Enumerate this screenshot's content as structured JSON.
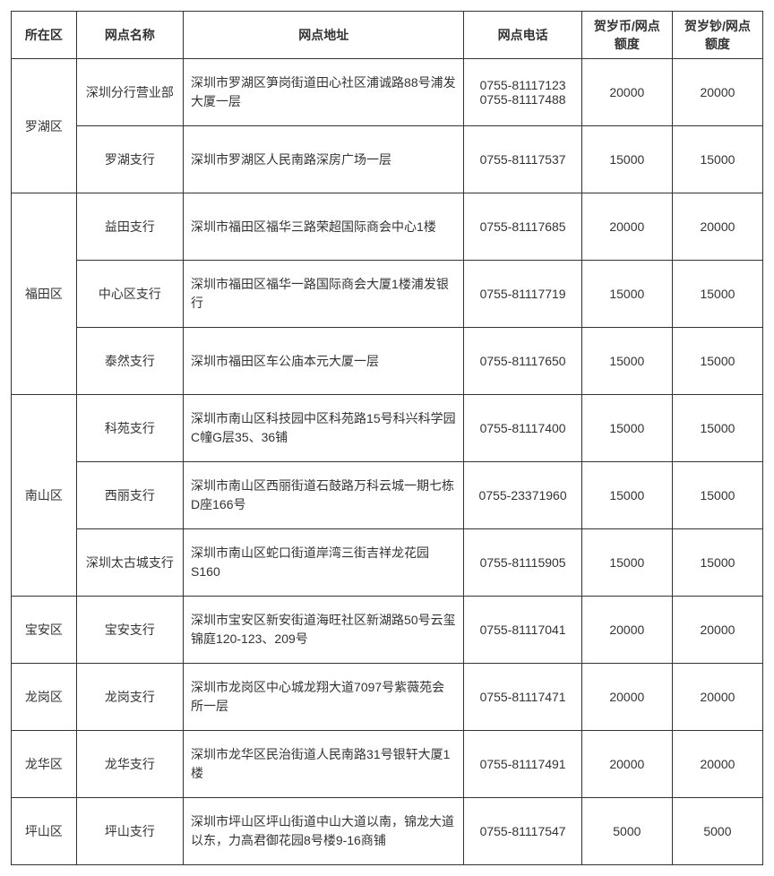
{
  "headers": {
    "district": "所在区",
    "branch": "网点名称",
    "address": "网点地址",
    "phone": "网点电话",
    "coin": "贺岁币/网点额度",
    "note": "贺岁钞/网点额度"
  },
  "groups": [
    {
      "district": "罗湖区",
      "rows": [
        {
          "branch": "深圳分行营业部",
          "address": "深圳市罗湖区笋岗街道田心社区浦诚路88号浦发大厦一层",
          "phone": "0755-81117123\n0755-81117488",
          "coin": "20000",
          "note": "20000"
        },
        {
          "branch": "罗湖支行",
          "address": "深圳市罗湖区人民南路深房广场一层",
          "phone": "0755-81117537",
          "coin": "15000",
          "note": "15000"
        }
      ]
    },
    {
      "district": "福田区",
      "rows": [
        {
          "branch": "益田支行",
          "address": "深圳市福田区福华三路荣超国际商会中心1楼",
          "phone": "0755-81117685",
          "coin": "20000",
          "note": "20000"
        },
        {
          "branch": "中心区支行",
          "address": "深圳市福田区福华一路国际商会大厦1楼浦发银行",
          "phone": "0755-81117719",
          "coin": "15000",
          "note": "15000"
        },
        {
          "branch": "泰然支行",
          "address": "深圳市福田区车公庙本元大厦一层",
          "phone": "0755-81117650",
          "coin": "15000",
          "note": "15000"
        }
      ]
    },
    {
      "district": "南山区",
      "rows": [
        {
          "branch": "科苑支行",
          "address": "深圳市南山区科技园中区科苑路15号科兴科学园C幢G层35、36铺",
          "phone": "0755-81117400",
          "coin": "15000",
          "note": "15000"
        },
        {
          "branch": "西丽支行",
          "address": "深圳市南山区西丽街道石鼓路万科云城一期七栋D座166号",
          "phone": "0755-23371960",
          "coin": "15000",
          "note": "15000"
        },
        {
          "branch": "深圳太古城支行",
          "address": "深圳市南山区蛇口街道岸湾三街吉祥龙花园S160",
          "phone": "0755-81115905",
          "coin": "15000",
          "note": "15000"
        }
      ]
    },
    {
      "district": "宝安区",
      "rows": [
        {
          "branch": "宝安支行",
          "address": "深圳市宝安区新安街道海旺社区新湖路50号云玺锦庭120-123、209号",
          "phone": "0755-81117041",
          "coin": "20000",
          "note": "20000"
        }
      ]
    },
    {
      "district": "龙岗区",
      "rows": [
        {
          "branch": "龙岗支行",
          "address": "深圳市龙岗区中心城龙翔大道7097号紫薇苑会所一层",
          "phone": "0755-81117471",
          "coin": "20000",
          "note": "20000"
        }
      ]
    },
    {
      "district": "龙华区",
      "rows": [
        {
          "branch": "龙华支行",
          "address": "深圳市龙华区民治街道人民南路31号银轩大厦1楼",
          "phone": "0755-81117491",
          "coin": "20000",
          "note": "20000"
        }
      ]
    },
    {
      "district": "坪山区",
      "rows": [
        {
          "branch": "坪山支行",
          "address": "深圳市坪山区坪山街道中山大道以南，锦龙大道以东，力高君御花园8号楼9-16商铺",
          "phone": "0755-81117547",
          "coin": "5000",
          "note": "5000"
        }
      ]
    }
  ]
}
